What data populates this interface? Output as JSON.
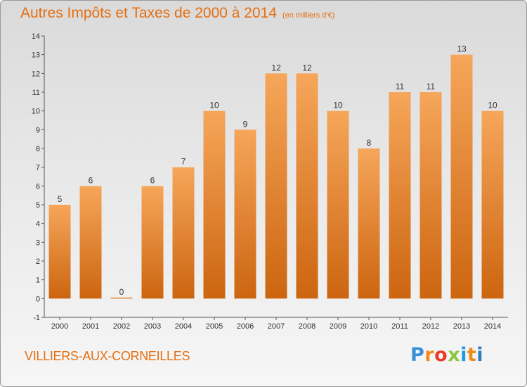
{
  "title": "Autres Impôts et Taxes de 2000 à 2014",
  "title_unit": "(en milliers d'€)",
  "commune": "VILLIERS-AUX-CORNEILLES",
  "logo": {
    "letters": [
      "P",
      "r",
      "o",
      "x",
      "i",
      "t",
      "i"
    ],
    "colors": [
      "#3a8fd6",
      "#f08a1c",
      "#e83b2a",
      "#8cc63f",
      "#1e9be0",
      "#f08a1c",
      "#2c7fc0"
    ]
  },
  "chart_data": {
    "type": "bar",
    "categories": [
      "2000",
      "2001",
      "2002",
      "2003",
      "2004",
      "2005",
      "2006",
      "2007",
      "2008",
      "2009",
      "2010",
      "2011",
      "2012",
      "2013",
      "2014"
    ],
    "values": [
      5,
      6,
      0,
      6,
      7,
      10,
      9,
      12,
      12,
      10,
      8,
      11,
      11,
      13,
      10
    ],
    "value_labels": [
      "5",
      "6",
      "0",
      "6",
      "7",
      "10",
      "9",
      "12",
      "12",
      "10",
      "8",
      "11",
      "11",
      "13",
      "10"
    ],
    "yticks": [
      "-1",
      "0",
      "1",
      "2",
      "3",
      "4",
      "5",
      "6",
      "7",
      "8",
      "9",
      "10",
      "11",
      "12",
      "13",
      "14"
    ],
    "ylim": [
      -1,
      14
    ],
    "bar_color_top": "#f6a65a",
    "bar_color_bottom": "#cc6510",
    "grid": false
  }
}
